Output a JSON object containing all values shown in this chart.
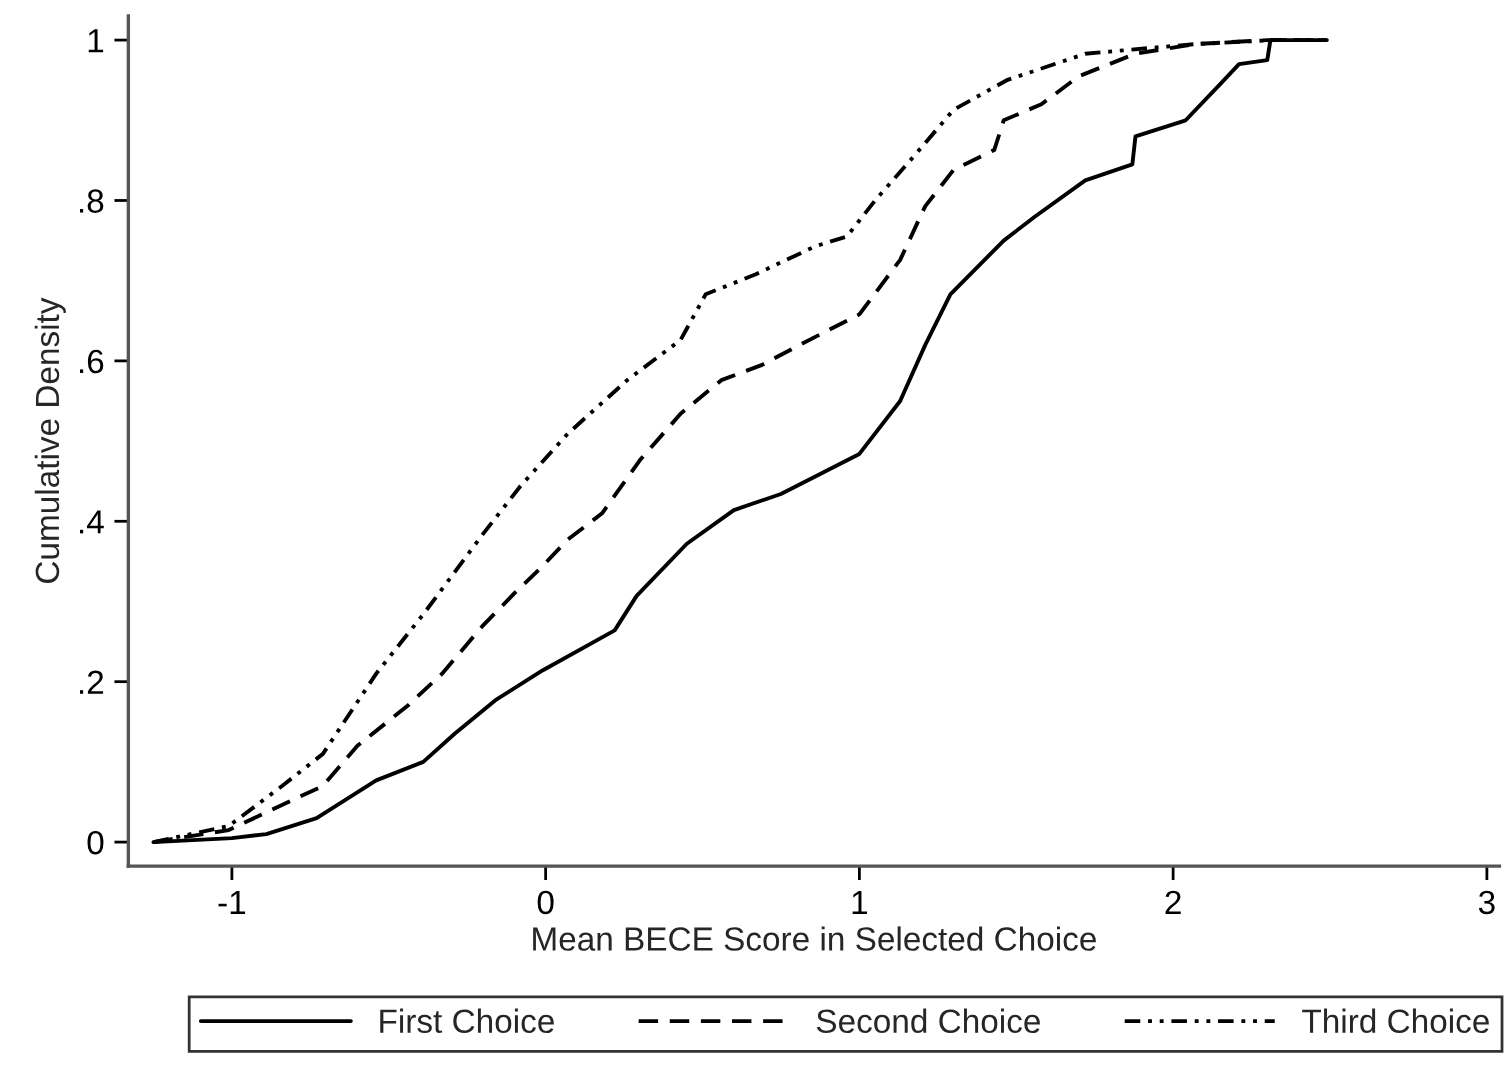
{
  "chart_data": {
    "type": "line",
    "xlabel": "Mean BECE Score in Selected Choice",
    "ylabel": "Cumulative Density",
    "xlim": [
      -1.33,
      3.04
    ],
    "ylim": [
      -0.03,
      1.03
    ],
    "xticks": [
      -1,
      0,
      1,
      2,
      3
    ],
    "yticks": [
      0,
      {
        "value": 0.2,
        "label": ".2"
      },
      {
        "value": 0.4,
        "label": ".4"
      },
      {
        "value": 0.6,
        "label": ".6"
      },
      {
        "value": 0.8,
        "label": ".8"
      },
      1
    ],
    "grid": false,
    "legend": "bottom",
    "series": [
      {
        "name": "First Choice",
        "color": "#000000",
        "line_style": "solid",
        "x": [
          -1.25,
          -1.0,
          -0.89,
          -0.73,
          -0.54,
          -0.39,
          -0.29,
          -0.16,
          -0.01,
          0.22,
          0.29,
          0.45,
          0.6,
          0.75,
          1.0,
          1.13,
          1.21,
          1.29,
          1.46,
          1.56,
          1.72,
          1.87,
          1.88,
          2.04,
          2.15,
          2.21,
          2.3,
          2.31,
          2.49
        ],
        "values": [
          0,
          0.005,
          0.01,
          0.03,
          0.077,
          0.1,
          0.135,
          0.177,
          0.214,
          0.264,
          0.307,
          0.372,
          0.414,
          0.434,
          0.484,
          0.55,
          0.62,
          0.683,
          0.75,
          0.78,
          0.825,
          0.845,
          0.88,
          0.9,
          0.945,
          0.97,
          0.975,
          1.0,
          1.0
        ]
      },
      {
        "name": "Second Choice",
        "color": "#000000",
        "line_style": "dashed",
        "x": [
          -1.25,
          -1.01,
          -0.82,
          -0.71,
          -0.6,
          -0.44,
          -0.33,
          -0.2,
          -0.1,
          -0.01,
          0.07,
          0.18,
          0.3,
          0.43,
          0.56,
          0.69,
          0.81,
          1.0,
          1.13,
          1.21,
          1.3,
          1.43,
          1.46,
          1.58,
          1.7,
          1.88,
          2.07,
          2.3,
          2.49
        ],
        "values": [
          0,
          0.015,
          0.05,
          0.07,
          0.12,
          0.17,
          0.21,
          0.27,
          0.31,
          0.344,
          0.377,
          0.41,
          0.476,
          0.534,
          0.576,
          0.595,
          0.62,
          0.658,
          0.726,
          0.793,
          0.838,
          0.863,
          0.9,
          0.92,
          0.955,
          0.983,
          0.995,
          1.0,
          1.0
        ]
      },
      {
        "name": "Third Choice",
        "color": "#000000",
        "line_style": "dashdot",
        "x": [
          -1.25,
          -1.01,
          -0.84,
          -0.71,
          -0.54,
          -0.39,
          -0.2,
          -0.08,
          0.07,
          0.26,
          0.43,
          0.51,
          0.67,
          0.86,
          0.96,
          1.05,
          1.18,
          1.3,
          1.47,
          1.72,
          2.07,
          2.32,
          2.49
        ],
        "values": [
          0,
          0.02,
          0.07,
          0.11,
          0.21,
          0.284,
          0.384,
          0.444,
          0.509,
          0.576,
          0.626,
          0.683,
          0.708,
          0.743,
          0.755,
          0.8,
          0.858,
          0.913,
          0.95,
          0.983,
          0.995,
          1.0,
          1.0
        ]
      }
    ]
  }
}
